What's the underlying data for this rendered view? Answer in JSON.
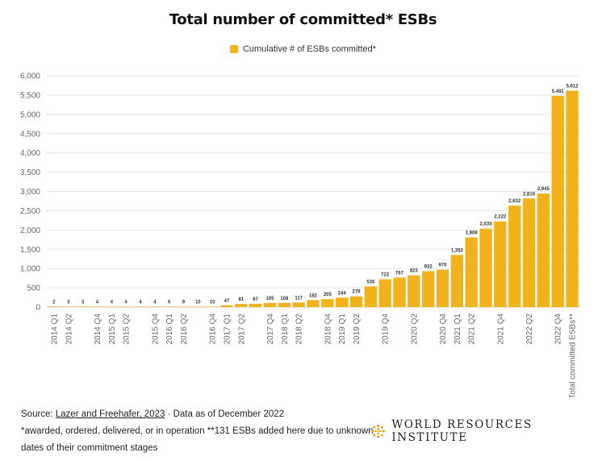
{
  "title": "Total number of committed* ESBs",
  "colors": {
    "bar": "#F2B21B",
    "grid": "#e6e6e6",
    "axis_text": "#666666"
  },
  "chart_data": {
    "type": "bar",
    "title": "Total number of committed* ESBs",
    "xlabel": "",
    "ylabel": "",
    "ylim": [
      0,
      6000
    ],
    "yticks": [
      "0",
      "500",
      "1,000",
      "1,500",
      "2,000",
      "2,500",
      "3,000",
      "3,500",
      "4,000",
      "4,500",
      "5,000",
      "5,500",
      "6,000"
    ],
    "grid": true,
    "legend_position": "top-center",
    "series": [
      {
        "name": "Cumulative # of ESBs committed*",
        "values": [
          2,
          3,
          3,
          4,
          4,
          4,
          4,
          4,
          6,
          9,
          10,
          10,
          47,
          81,
          87,
          105,
          108,
          117,
          182,
          205,
          244,
          279,
          536,
          722,
          767,
          823,
          932,
          970,
          1352,
          1808,
          2035,
          2222,
          2632,
          2816,
          2945,
          5481,
          5612
        ],
        "labels": [
          "2",
          "3",
          "3",
          "4",
          "4",
          "4",
          "4",
          "4",
          "6",
          "9",
          "10",
          "10",
          "47",
          "81",
          "87",
          "105",
          "108",
          "117",
          "182",
          "205",
          "244",
          "279",
          "536",
          "722",
          "767",
          "823",
          "932",
          "970",
          "1,352",
          "1,808",
          "2,035",
          "2,222",
          "2,632",
          "2,816",
          "2,945",
          "5,481",
          "5,612"
        ]
      }
    ],
    "categories": [
      "2014 Q1",
      "2014 Q2",
      "",
      "2014 Q4",
      "2015 Q1",
      "2015 Q2",
      "",
      "2015 Q4",
      "2016 Q1",
      "2016 Q2",
      "",
      "2016 Q4",
      "2017 Q1",
      "2017 Q2",
      "",
      "2017 Q4",
      "2018 Q1",
      "2018 Q2",
      "",
      "2018 Q4",
      "2019 Q1",
      "2019 Q2",
      "",
      "2019 Q4",
      "",
      "2020 Q2",
      "",
      "2020 Q4",
      "2021 Q1",
      "2021 Q2",
      "",
      "2021 Q4",
      "",
      "2022 Q2",
      "",
      "2022 Q4",
      "Total committed ESBs**"
    ]
  },
  "footer": {
    "source_prefix": "Source: ",
    "source_link": "Lazer and Freehafer, 2023",
    "source_suffix": " · Data as of December 2022",
    "note": "*awarded, ordered, delivered, or in operation **131 ESBs added here due to unknown dates of their commitment stages"
  },
  "brand": {
    "name": "WORLD RESOURCES INSTITUTE",
    "logo_icon": "wri-logo-icon"
  }
}
